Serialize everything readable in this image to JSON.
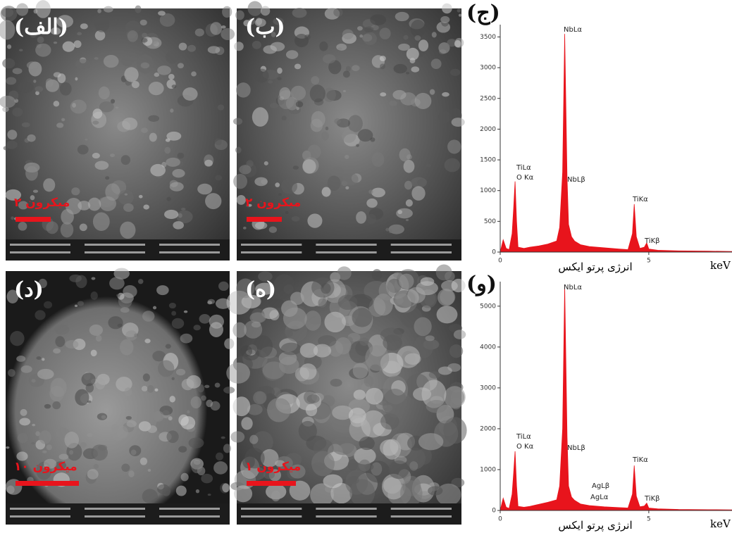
{
  "panels": [
    {
      "label": "(الف)",
      "scale_text": "۲ میکرون"
    },
    {
      "label": "(ب)",
      "scale_text": "۲ میکرون"
    },
    {
      "label": "(د)",
      "scale_text": "۱۰ میکرون"
    },
    {
      "label": "(ه)",
      "scale_text": "۱ میکرون"
    }
  ],
  "chart_data": [
    {
      "type": "area",
      "panel_label": "(ج)",
      "x_label": "انرژی پرتو ایکس",
      "x_unit": "keV",
      "color": "#e8141c",
      "xlim": [
        0,
        7.8
      ],
      "xticks": [
        0,
        5
      ],
      "ylim": [
        0,
        3700
      ],
      "yticks": [
        0,
        500,
        1000,
        1500,
        2000,
        2500,
        3000,
        3500
      ],
      "x": [
        0,
        0.1,
        0.2,
        0.3,
        0.4,
        0.45,
        0.5,
        0.55,
        0.6,
        0.8,
        1.0,
        1.3,
        1.6,
        1.9,
        2.0,
        2.1,
        2.17,
        2.25,
        2.3,
        2.4,
        2.5,
        2.7,
        3.0,
        3.5,
        4.0,
        4.3,
        4.45,
        4.51,
        4.58,
        4.7,
        4.85,
        4.93,
        5.0,
        5.3,
        6.0,
        7.0,
        7.8
      ],
      "series": [
        {
          "values": [
            0,
            200,
            60,
            40,
            300,
            700,
            1150,
            500,
            80,
            60,
            80,
            100,
            130,
            180,
            400,
            1300,
            3550,
            1200,
            450,
            250,
            180,
            120,
            90,
            70,
            50,
            40,
            300,
            780,
            250,
            60,
            80,
            150,
            50,
            30,
            20,
            15,
            10
          ]
        }
      ],
      "annotations": [
        "NbLα",
        "TiLα",
        "O Kα",
        "NbLβ",
        "TiKα",
        "TiKβ"
      ]
    },
    {
      "type": "area",
      "panel_label": "(و)",
      "x_label": "انرژی پرتو ایکس",
      "x_unit": "keV",
      "color": "#e8141c",
      "xlim": [
        0,
        7.8
      ],
      "xticks": [
        0,
        5
      ],
      "ylim": [
        0,
        5600
      ],
      "yticks": [
        0,
        1000,
        2000,
        3000,
        4000,
        5000
      ],
      "x": [
        0,
        0.1,
        0.2,
        0.3,
        0.4,
        0.45,
        0.5,
        0.55,
        0.6,
        0.8,
        1.0,
        1.3,
        1.6,
        1.9,
        2.0,
        2.1,
        2.17,
        2.25,
        2.3,
        2.4,
        2.5,
        2.7,
        3.0,
        3.5,
        4.0,
        4.3,
        4.45,
        4.51,
        4.58,
        4.7,
        4.85,
        4.93,
        5.0,
        5.3,
        6.0,
        7.0,
        7.8
      ],
      "series": [
        {
          "values": [
            0,
            300,
            80,
            50,
            400,
            900,
            1450,
            600,
            100,
            80,
            100,
            150,
            200,
            260,
            600,
            2000,
            5500,
            1800,
            600,
            330,
            250,
            160,
            120,
            90,
            70,
            60,
            400,
            1100,
            350,
            90,
            110,
            180,
            60,
            40,
            25,
            20,
            15
          ]
        }
      ],
      "annotations": [
        "NbLα",
        "TiLα",
        "O Kα",
        "NbLβ",
        "AgLβ",
        "AgLα",
        "TiKα",
        "TiKβ"
      ]
    }
  ]
}
